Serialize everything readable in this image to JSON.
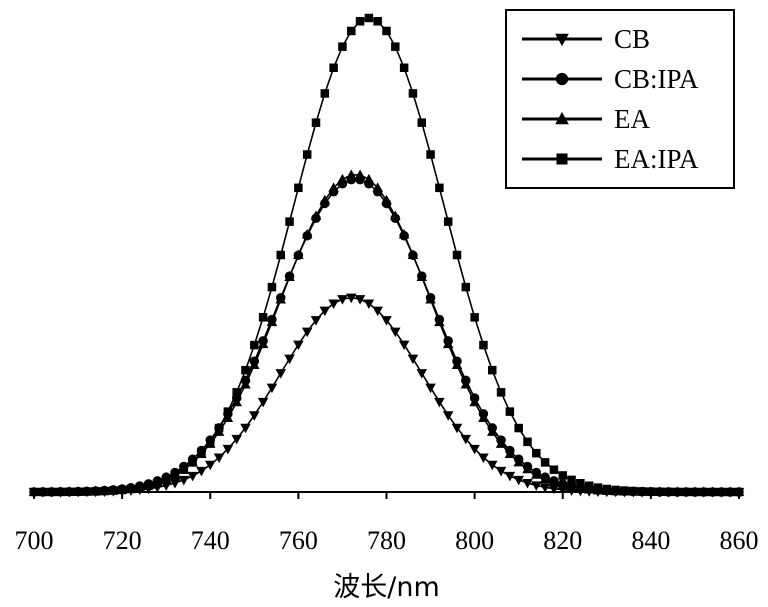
{
  "chart_data": {
    "type": "line",
    "title": "",
    "xlabel": "波长/nm",
    "ylabel": "",
    "xlim": [
      700,
      860
    ],
    "xticks": [
      700,
      720,
      740,
      760,
      780,
      800,
      820,
      840,
      860
    ],
    "grid": false,
    "y_axis_visible": false,
    "legend_position": "top-right",
    "colors": {
      "line": "#000000",
      "background": "#ffffff"
    },
    "series": [
      {
        "name": "CB",
        "marker": "triangle-down",
        "peak_x": 772,
        "peak_y": 0.41,
        "fwhm": 38
      },
      {
        "name": "CB:IPA",
        "marker": "circle",
        "peak_x": 773,
        "peak_y": 0.66,
        "fwhm": 41
      },
      {
        "name": "EA",
        "marker": "triangle-up",
        "peak_x": 773,
        "peak_y": 0.67,
        "fwhm": 40
      },
      {
        "name": "EA:IPA",
        "marker": "square",
        "peak_x": 776,
        "peak_y": 1.0,
        "fwhm": 40
      }
    ],
    "x_step": 2
  }
}
